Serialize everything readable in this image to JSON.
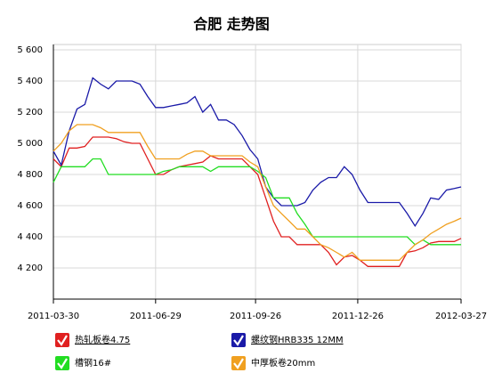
{
  "chart_data": {
    "type": "line",
    "title": "合肥 走势图",
    "x": [
      "2011-03-30",
      "2011-04-06",
      "2011-04-13",
      "2011-04-20",
      "2011-04-27",
      "2011-05-04",
      "2011-05-11",
      "2011-05-18",
      "2011-05-25",
      "2011-06-01",
      "2011-06-08",
      "2011-06-15",
      "2011-06-22",
      "2011-06-29",
      "2011-07-06",
      "2011-07-13",
      "2011-07-20",
      "2011-07-27",
      "2011-08-03",
      "2011-08-10",
      "2011-08-17",
      "2011-08-24",
      "2011-08-31",
      "2011-09-07",
      "2011-09-14",
      "2011-09-21",
      "2011-09-28",
      "2011-10-05",
      "2011-10-12",
      "2011-10-19",
      "2011-10-26",
      "2011-11-02",
      "2011-11-09",
      "2011-11-16",
      "2011-11-23",
      "2011-11-30",
      "2011-12-07",
      "2011-12-14",
      "2011-12-21",
      "2011-12-28",
      "2012-01-04",
      "2012-01-11",
      "2012-01-18",
      "2012-01-25",
      "2012-02-01",
      "2012-02-08",
      "2012-02-15",
      "2012-02-22",
      "2012-02-29",
      "2012-03-07",
      "2012-03-14",
      "2012-03-21",
      "2012-03-27"
    ],
    "series": [
      {
        "name": "热轧板卷4.75",
        "color": "#e02020",
        "values": [
          4900,
          4850,
          4970,
          4970,
          4980,
          5040,
          5040,
          5040,
          5030,
          5010,
          5000,
          5000,
          4900,
          4800,
          4800,
          4830,
          4850,
          4860,
          4870,
          4880,
          4920,
          4900,
          4900,
          4900,
          4900,
          4850,
          4800,
          4650,
          4500,
          4400,
          4400,
          4350,
          4350,
          4350,
          4350,
          4300,
          4220,
          4270,
          4280,
          4250,
          4210,
          4210,
          4210,
          4210,
          4210,
          4300,
          4310,
          4330,
          4360,
          4370,
          4370,
          4370,
          4390
        ]
      },
      {
        "name": "螺纹钢HRB335 12MM",
        "color": "#1a1aa8",
        "values": [
          4950,
          4860,
          5080,
          5220,
          5250,
          5420,
          5380,
          5350,
          5400,
          5400,
          5400,
          5380,
          5300,
          5230,
          5230,
          5240,
          5250,
          5260,
          5300,
          5200,
          5250,
          5150,
          5150,
          5120,
          5050,
          4960,
          4900,
          4720,
          4650,
          4600,
          4600,
          4600,
          4620,
          4700,
          4750,
          4780,
          4780,
          4850,
          4800,
          4700,
          4620,
          4620,
          4620,
          4620,
          4620,
          4550,
          4470,
          4550,
          4650,
          4640,
          4700,
          4710,
          4720
        ]
      },
      {
        "name": "槽钢16#",
        "color": "#22dd22",
        "values": [
          4750,
          4850,
          4850,
          4850,
          4850,
          4900,
          4900,
          4800,
          4800,
          4800,
          4800,
          4800,
          4800,
          4800,
          4820,
          4830,
          4850,
          4850,
          4850,
          4850,
          4820,
          4850,
          4850,
          4850,
          4850,
          4850,
          4820,
          4780,
          4650,
          4650,
          4650,
          4550,
          4480,
          4400,
          4400,
          4400,
          4400,
          4400,
          4400,
          4400,
          4400,
          4400,
          4400,
          4400,
          4400,
          4400,
          4350,
          4380,
          4350,
          4350,
          4350,
          4350,
          4350
        ]
      },
      {
        "name": "中厚板卷20mm",
        "color": "#f0a020",
        "values": [
          4950,
          5000,
          5080,
          5120,
          5120,
          5120,
          5100,
          5070,
          5070,
          5070,
          5070,
          5070,
          4980,
          4900,
          4900,
          4900,
          4900,
          4930,
          4950,
          4950,
          4920,
          4920,
          4920,
          4920,
          4920,
          4880,
          4850,
          4720,
          4600,
          4550,
          4500,
          4450,
          4450,
          4400,
          4350,
          4330,
          4300,
          4270,
          4300,
          4250,
          4250,
          4250,
          4250,
          4250,
          4250,
          4300,
          4350,
          4380,
          4420,
          4450,
          4480,
          4500,
          4520
        ]
      }
    ],
    "xlim": [
      "2011-03-30",
      "2012-03-27"
    ],
    "xticks": [
      "2011-03-30",
      "2011-06-29",
      "2011-09-26",
      "2011-12-26",
      "2012-03-27"
    ],
    "ylim": [
      4000,
      5600
    ],
    "yticks": [
      {
        "value": 4200,
        "label": "4 200"
      },
      {
        "value": 4400,
        "label": "4 400"
      },
      {
        "value": 4600,
        "label": "4 600"
      },
      {
        "value": 4800,
        "label": "4 800"
      },
      {
        "value": 5000,
        "label": "5 000"
      },
      {
        "value": 5200,
        "label": "5 200"
      },
      {
        "value": 5400,
        "label": "5 400"
      },
      {
        "value": 5600,
        "label": "5 600"
      }
    ],
    "grid": true
  }
}
